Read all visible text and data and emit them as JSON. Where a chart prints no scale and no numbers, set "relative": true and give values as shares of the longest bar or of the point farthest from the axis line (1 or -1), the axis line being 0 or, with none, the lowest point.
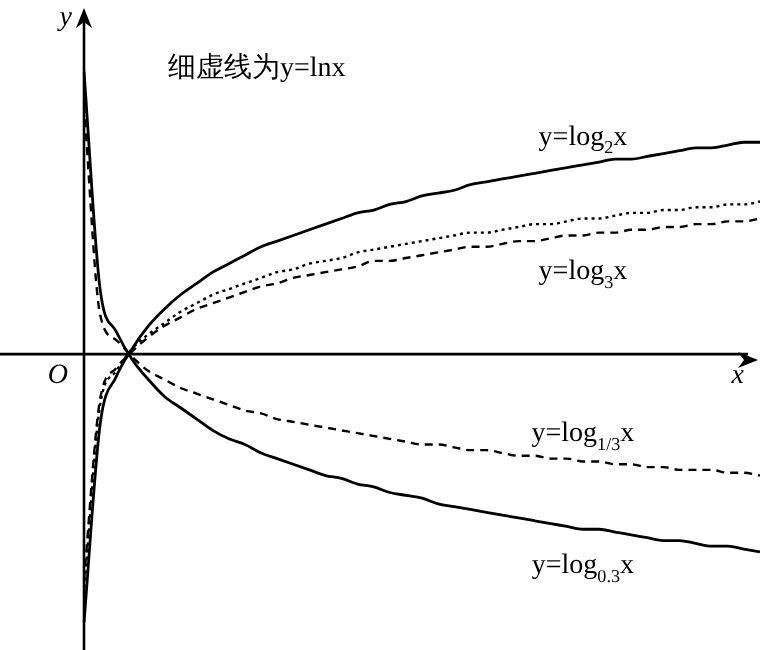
{
  "chart_data": {
    "type": "line",
    "relative": true,
    "xlabel": "x",
    "ylabel": "y",
    "marker": "none",
    "annotations": [
      "细虚线为y=lnx",
      "O"
    ],
    "categories": [
      null,
      null,
      null,
      null,
      null,
      null,
      null,
      null,
      null,
      null,
      null,
      null,
      null,
      null,
      null,
      null,
      null,
      null,
      null,
      null,
      null,
      null,
      null,
      null,
      null,
      null,
      null,
      null,
      null,
      null,
      null,
      null,
      null,
      null,
      null,
      null,
      null,
      null,
      null,
      null,
      null,
      null,
      null
    ],
    "series": [
      {
        "name": "y=log$_{2}$x",
        "color": "#000000",
        "line_style": "solid",
        "values": [
          -0.95,
          -0.25,
          -0.08,
          0.02,
          0.1,
          0.16,
          0.21,
          0.25,
          0.29,
          0.32,
          0.35,
          0.38,
          0.4,
          0.42,
          0.44,
          0.46,
          0.48,
          0.5,
          0.51,
          0.53,
          0.54,
          0.56,
          0.57,
          0.58,
          0.6,
          0.61,
          0.62,
          0.63,
          0.64,
          0.65,
          0.66,
          0.67,
          0.68,
          0.69,
          0.69,
          0.7,
          0.71,
          0.72,
          0.73,
          0.73,
          0.74,
          0.75,
          0.75
        ]
      },
      {
        "color": "#000000",
        "line_style": "dotted",
        "values": [
          -0.85,
          -0.18,
          -0.06,
          0.02,
          0.07,
          0.11,
          0.15,
          0.18,
          0.21,
          0.23,
          0.25,
          0.27,
          0.29,
          0.3,
          0.32,
          0.33,
          0.34,
          0.36,
          0.37,
          0.38,
          0.39,
          0.4,
          0.41,
          0.42,
          0.43,
          0.43,
          0.44,
          0.45,
          0.46,
          0.46,
          0.47,
          0.48,
          0.48,
          0.49,
          0.5,
          0.5,
          0.51,
          0.51,
          0.52,
          0.52,
          0.53,
          0.53,
          0.54
        ]
      },
      {
        "name": "y=log$_{3}$x",
        "color": "#000000",
        "line_style": "dashed",
        "values": [
          -0.8,
          -0.16,
          -0.05,
          0.01,
          0.06,
          0.1,
          0.13,
          0.16,
          0.18,
          0.2,
          0.22,
          0.24,
          0.25,
          0.27,
          0.28,
          0.29,
          0.3,
          0.31,
          0.33,
          0.33,
          0.34,
          0.35,
          0.36,
          0.37,
          0.38,
          0.38,
          0.39,
          0.4,
          0.4,
          0.41,
          0.42,
          0.42,
          0.43,
          0.43,
          0.44,
          0.44,
          0.45,
          0.45,
          0.46,
          0.46,
          0.47,
          0.47,
          0.48
        ]
      },
      {
        "name": "y=log$_{1/3}$x",
        "color": "#000000",
        "line_style": "dashed",
        "values": [
          0.88,
          0.14,
          0.05,
          -0.01,
          -0.06,
          -0.09,
          -0.12,
          -0.14,
          -0.16,
          -0.18,
          -0.2,
          -0.21,
          -0.23,
          -0.24,
          -0.25,
          -0.26,
          -0.27,
          -0.28,
          -0.29,
          -0.3,
          -0.31,
          -0.32,
          -0.32,
          -0.33,
          -0.34,
          -0.34,
          -0.35,
          -0.36,
          -0.36,
          -0.37,
          -0.37,
          -0.38,
          -0.38,
          -0.39,
          -0.39,
          -0.4,
          -0.4,
          -0.41,
          -0.41,
          -0.41,
          -0.42,
          -0.42,
          -0.43
        ]
      },
      {
        "name": "y=log$_{0.3}$x",
        "color": "#000000",
        "line_style": "solid",
        "values": [
          1,
          0.23,
          0.08,
          -0.02,
          -0.09,
          -0.15,
          -0.19,
          -0.23,
          -0.27,
          -0.3,
          -0.32,
          -0.35,
          -0.37,
          -0.39,
          -0.41,
          -0.43,
          -0.44,
          -0.46,
          -0.47,
          -0.49,
          -0.5,
          -0.51,
          -0.53,
          -0.54,
          -0.55,
          -0.56,
          -0.57,
          -0.58,
          -0.59,
          -0.6,
          -0.61,
          -0.62,
          -0.62,
          -0.63,
          -0.64,
          -0.65,
          -0.66,
          -0.66,
          -0.67,
          -0.68,
          -0.68,
          -0.69,
          -0.7
        ]
      }
    ]
  }
}
